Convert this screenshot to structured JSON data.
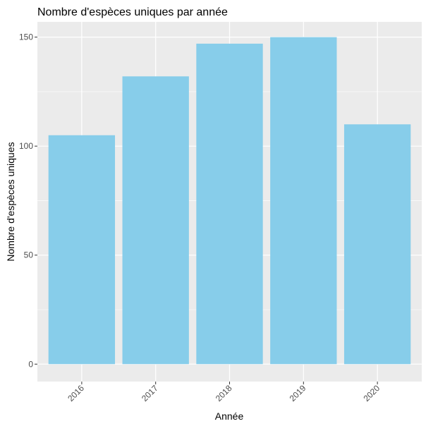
{
  "chart_data": {
    "type": "bar",
    "title": "Nombre d'espèces uniques par année",
    "xlabel": "Année",
    "ylabel": "Nombre d'espèces uniques",
    "categories": [
      "2016",
      "2017",
      "2018",
      "2019",
      "2020"
    ],
    "values": [
      105,
      132,
      147,
      150,
      110
    ],
    "ylim": [
      -8,
      157
    ],
    "yticks": [
      0,
      50,
      100,
      150
    ],
    "ytick_labels": [
      "0",
      "50",
      "100",
      "150"
    ],
    "grid": true,
    "legend": "none",
    "colors": {
      "bar": "#87CDEA",
      "panel_background": "#EBEBEB",
      "grid": "#FFFFFF"
    }
  }
}
